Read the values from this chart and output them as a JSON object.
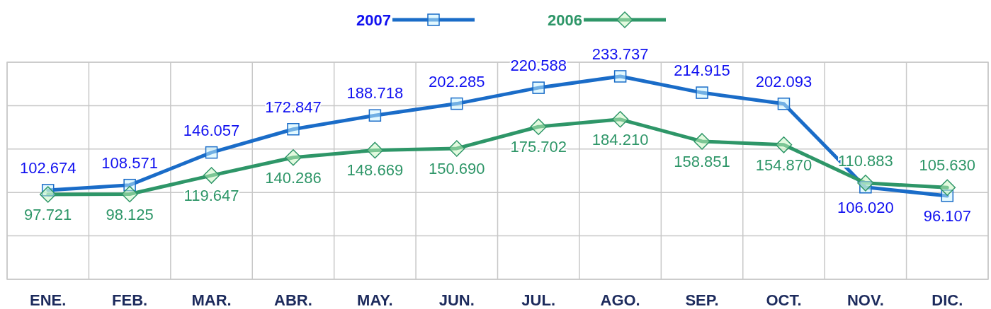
{
  "chart_data": {
    "type": "line",
    "categories": [
      "ENE.",
      "FEB.",
      "MAR.",
      "ABR.",
      "MAY.",
      "JUN.",
      "JUL.",
      "AGO.",
      "SEP.",
      "OCT.",
      "NOV.",
      "DIC."
    ],
    "series": [
      {
        "name": "2007",
        "color": "#1a6cc8",
        "marker": "square",
        "values": [
          102.674,
          108.571,
          146.057,
          172.847,
          188.718,
          202.285,
          220.588,
          233.737,
          214.915,
          202.093,
          106.02,
          96.107
        ],
        "value_labels": [
          "102.674",
          "108.571",
          "146.057",
          "172.847",
          "188.718",
          "202.285",
          "220.588",
          "233.737",
          "214.915",
          "202.093",
          "106.020",
          "96.107"
        ]
      },
      {
        "name": "2006",
        "color": "#2e9668",
        "marker": "diamond",
        "values": [
          97.721,
          98.125,
          119.647,
          140.286,
          148.669,
          150.69,
          175.702,
          184.21,
          158.851,
          154.87,
          110.883,
          105.63
        ],
        "value_labels": [
          "97.721",
          "98.125",
          "119.647",
          "140.286",
          "148.669",
          "150.690",
          "175.702",
          "184.210",
          "158.851",
          "154.870",
          "110.883",
          "105.630"
        ]
      }
    ],
    "ylim": [
      0,
      250
    ],
    "yticks": [
      {
        "value": 0,
        "label": null
      },
      {
        "value": 50,
        "label": null
      },
      {
        "value": 100,
        "label": null
      },
      {
        "value": 150,
        "label": null
      },
      {
        "value": 200,
        "label": null
      },
      {
        "value": 250,
        "label": null
      }
    ],
    "tick_labels": "x",
    "grid": true,
    "legend": "top"
  }
}
